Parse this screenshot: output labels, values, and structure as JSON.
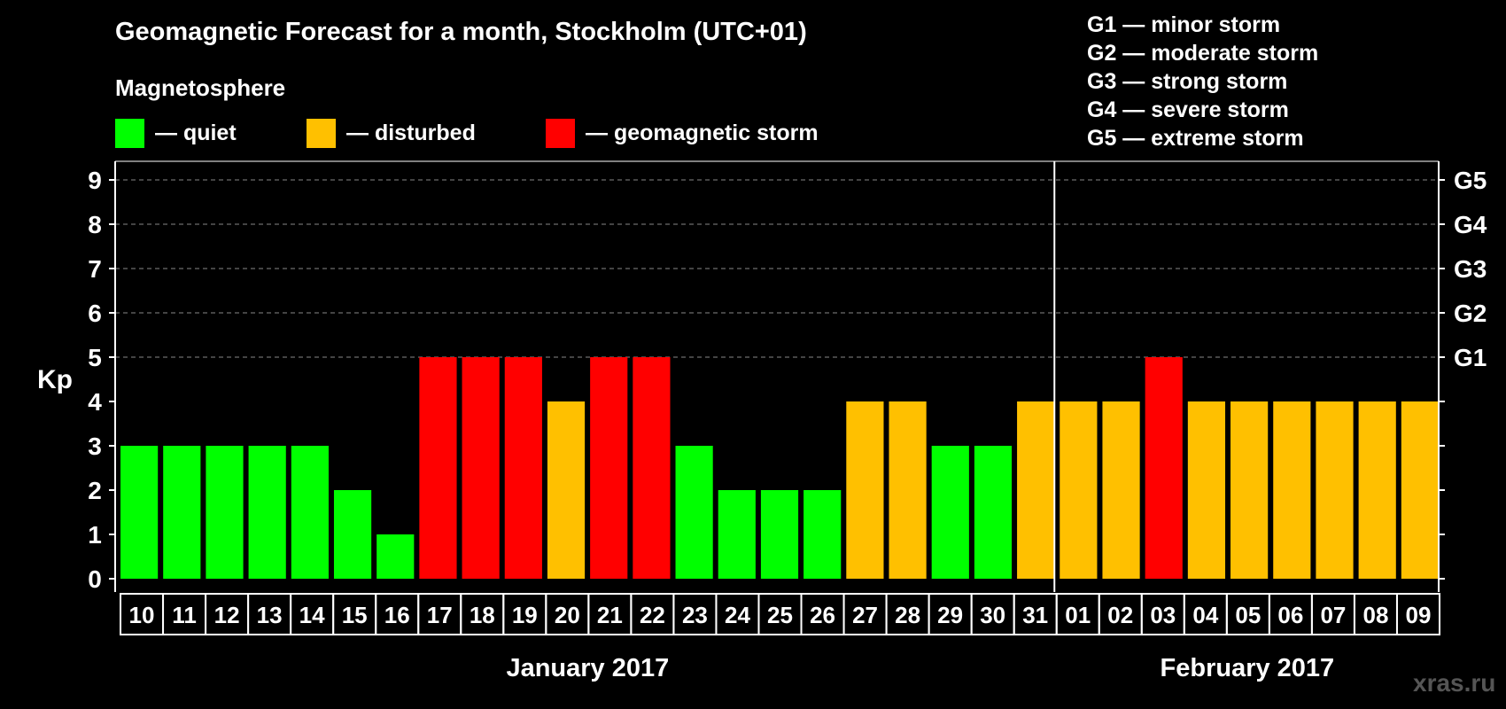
{
  "title": "Geomagnetic Forecast for a month, Stockholm (UTC+01)",
  "magnetosphere": {
    "heading": "Magnetosphere",
    "legend": [
      {
        "key": "quiet",
        "label": "— quiet",
        "color": "#00ff00"
      },
      {
        "key": "disturbed",
        "label": "— disturbed",
        "color": "#ffc000"
      },
      {
        "key": "storm",
        "label": "— geomagnetic storm",
        "color": "#ff0000"
      }
    ]
  },
  "storm_levels": [
    "G1 — minor storm",
    "G2 — moderate storm",
    "G3 — strong storm",
    "G4 — severe storm",
    "G5 — extreme storm"
  ],
  "watermark": "xras.ru",
  "chart_data": {
    "type": "bar",
    "ylabel": "Kp",
    "ylim": [
      0,
      9
    ],
    "yticks": [
      "0",
      "1",
      "2",
      "3",
      "4",
      "5",
      "6",
      "7",
      "8",
      "9"
    ],
    "right_axis_labels": [
      {
        "kp": 5,
        "label": "G1"
      },
      {
        "kp": 6,
        "label": "G2"
      },
      {
        "kp": 7,
        "label": "G3"
      },
      {
        "kp": 8,
        "label": "G4"
      },
      {
        "kp": 9,
        "label": "G5"
      }
    ],
    "categories": [
      "10",
      "11",
      "12",
      "13",
      "14",
      "15",
      "16",
      "17",
      "18",
      "19",
      "20",
      "21",
      "22",
      "23",
      "24",
      "25",
      "26",
      "27",
      "28",
      "29",
      "30",
      "31",
      "01",
      "02",
      "03",
      "04",
      "05",
      "06",
      "07",
      "08",
      "09"
    ],
    "values": [
      3,
      3,
      3,
      3,
      3,
      2,
      1,
      5,
      5,
      5,
      4,
      5,
      5,
      3,
      2,
      2,
      2,
      4,
      4,
      3,
      3,
      4,
      4,
      4,
      5,
      4,
      4,
      4,
      4,
      4,
      4
    ],
    "levels": [
      "quiet",
      "quiet",
      "quiet",
      "quiet",
      "quiet",
      "quiet",
      "quiet",
      "storm",
      "storm",
      "storm",
      "disturbed",
      "storm",
      "storm",
      "quiet",
      "quiet",
      "quiet",
      "quiet",
      "disturbed",
      "disturbed",
      "quiet",
      "quiet",
      "disturbed",
      "disturbed",
      "disturbed",
      "storm",
      "disturbed",
      "disturbed",
      "disturbed",
      "disturbed",
      "disturbed",
      "disturbed"
    ],
    "months": [
      {
        "label": "January 2017",
        "first_index": 0,
        "count": 22
      },
      {
        "label": "February 2017",
        "first_index": 22,
        "count": 9
      }
    ],
    "grid": "dashed at 5-9",
    "colors": {
      "quiet": "#00ff00",
      "disturbed": "#ffc000",
      "storm": "#ff0000",
      "grid": "#888888",
      "axis": "#ffffff"
    }
  }
}
